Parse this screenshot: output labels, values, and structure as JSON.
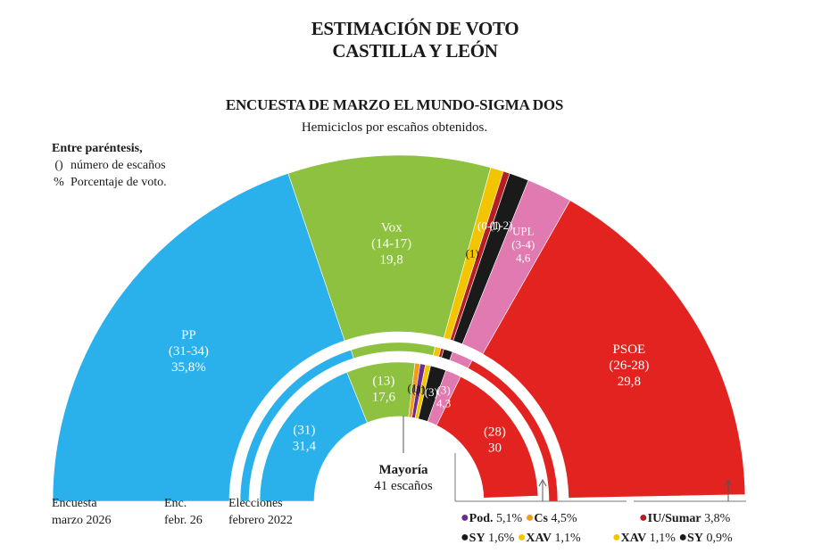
{
  "header": {
    "title_line1": "ESTIMACIÓN DE VOTO",
    "title_line2": "CASTILLA Y LEÓN",
    "subtitle": "ENCUESTA DE MARZO EL MUNDO-SIGMA DOS",
    "note": "Hemiciclos por escaños obtenidos."
  },
  "legend_key": {
    "heading": "Entre paréntesis,",
    "seats_symbol": "()",
    "seats_text": "número de escaños",
    "pct_symbol": "%",
    "pct_text": "Porcentaje de voto."
  },
  "bottom_labels": {
    "outer_line1": "Encuesta",
    "outer_line2": "marzo 2026",
    "mid_line1": "Enc.",
    "mid_line2": "febr. 26",
    "inner_line1": "Elecciones",
    "inner_line2": "febrero 2022"
  },
  "majority": {
    "label": "Mayoría",
    "seats": "41 escaños"
  },
  "small_parties": {
    "poll_row1": [
      {
        "name": "Pod.",
        "value": "5,1%",
        "color": "#6d2b8f"
      },
      {
        "name": "Cs",
        "value": "4,5%",
        "color": "#f29a1e"
      }
    ],
    "poll_row2": [
      {
        "name": "SY",
        "value": "1,6%",
        "color": "#1a1a1a"
      },
      {
        "name": "XAV",
        "value": "1,1%",
        "color": "#f2c500"
      }
    ],
    "election_row1": [
      {
        "name": "IU/Sumar",
        "value": "3,8%",
        "color": "#b41f24"
      }
    ],
    "election_row2": [
      {
        "name": "XAV",
        "value": "1,1%",
        "color": "#f2c500"
      },
      {
        "name": "SY",
        "value": "0,9%",
        "color": "#1a1a1a"
      }
    ]
  },
  "chart_data": {
    "type": "parliament",
    "total_seats": 82,
    "majority": 41,
    "rings": [
      {
        "name": "Encuesta marzo 2026",
        "segments": [
          {
            "party": "PP",
            "seats": 32.5,
            "color": "#2ab0ea",
            "label_lines": [
              "PP",
              "(31-34)",
              "35,8%"
            ]
          },
          {
            "party": "Vox",
            "seats": 15.5,
            "color": "#8dc13f",
            "label_lines": [
              "Vox",
              "(14-17)",
              "19,8"
            ]
          },
          {
            "party": "XAV",
            "seats": 1,
            "color": "#f2c500",
            "label_lines": [
              "(1)"
            ]
          },
          {
            "party": "IU/Sumar",
            "seats": 0.5,
            "color": "#b41f24",
            "label_lines": [
              "(0-1)"
            ]
          },
          {
            "party": "SY",
            "seats": 1.5,
            "color": "#1a1a1a",
            "label_lines": [
              "(1-2)"
            ]
          },
          {
            "party": "UPL",
            "seats": 3.5,
            "color": "#e07ab0",
            "label_lines": [
              "UPL",
              "(3-4)",
              "4,6"
            ]
          },
          {
            "party": "PSOE",
            "seats": 27,
            "color": "#e2231f",
            "label_lines": [
              "PSOE",
              "(26-28)",
              "29,8"
            ]
          }
        ]
      },
      {
        "name": "Enc. febr. 26",
        "segments": [
          {
            "party": "PP",
            "seats": 33,
            "color": "#2ab0ea"
          },
          {
            "party": "Vox",
            "seats": 14,
            "color": "#8dc13f"
          },
          {
            "party": "XAV",
            "seats": 1,
            "color": "#f2c500"
          },
          {
            "party": "IU/Sumar",
            "seats": 0.5,
            "color": "#b41f24"
          },
          {
            "party": "SY",
            "seats": 1.5,
            "color": "#1a1a1a"
          },
          {
            "party": "UPL",
            "seats": 3.5,
            "color": "#e07ab0"
          },
          {
            "party": "PSOE",
            "seats": 28.5,
            "color": "#e2231f"
          }
        ]
      },
      {
        "name": "Elecciones febrero 2022",
        "segments": [
          {
            "party": "PP",
            "seats": 31,
            "color": "#2ab0ea",
            "label_lines": [
              "(31)",
              "31,4"
            ]
          },
          {
            "party": "Vox",
            "seats": 13,
            "color": "#8dc13f",
            "label_lines": [
              "(13)",
              "17,6"
            ]
          },
          {
            "party": "Cs",
            "seats": 1,
            "color": "#f29a1e",
            "label_lines": [
              "(1)"
            ]
          },
          {
            "party": "Pod.",
            "seats": 1,
            "color": "#6d2b8f",
            "label_lines": [
              "(1)"
            ]
          },
          {
            "party": "XAV",
            "seats": 1,
            "color": "#f2c500",
            "label_lines": [
              "(1)"
            ]
          },
          {
            "party": "SY",
            "seats": 3,
            "color": "#1a1a1a",
            "label_lines": [
              "(3)"
            ]
          },
          {
            "party": "UPL",
            "seats": 3,
            "color": "#e07ab0",
            "label_lines": [
              "(3)",
              "4,3"
            ]
          },
          {
            "party": "PSOE",
            "seats": 28,
            "color": "#e2231f",
            "label_lines": [
              "(28)",
              "30"
            ]
          }
        ]
      }
    ]
  }
}
